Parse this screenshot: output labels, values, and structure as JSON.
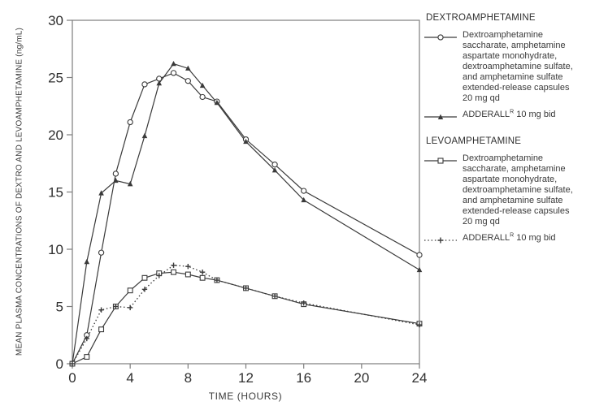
{
  "figure_title": "Mean plasma concentrations of dextro- and levoamphetamine",
  "colors": {
    "line": "#3a3a3a",
    "frame": "#7d7d7d",
    "text": "#2f2f2f",
    "background": "#ffffff"
  },
  "legend": {
    "groups": [
      {
        "header": "DEXTROAMPHETAMINE"
      },
      {
        "header": "LEVOAMPHETAMINE"
      }
    ],
    "capsule_text": "Dextroamphetamine\nsaccharate, amphetamine\naspartate monohydrate,\ndextroamphetamine sulfate,\nand amphetamine sulfate\nextended-release capsules\n20 mg qd",
    "adderall": {
      "name": "ADDERALL",
      "registered_mark": "R",
      "dose": " 10 mg bid"
    }
  },
  "chart_data": {
    "type": "line",
    "title": "",
    "xlabel": "TIME (HOURS)",
    "ylabel": "MEAN PLASMA CONCENTRATIONS OF DEXTRO AND LEVOAMPHETAMINE (ng/mL)",
    "xlim": [
      0,
      24
    ],
    "ylim": [
      0,
      30
    ],
    "xticks": [
      0,
      4,
      8,
      12,
      16,
      20,
      24
    ],
    "yticks": [
      0,
      5,
      10,
      15,
      20,
      25,
      30
    ],
    "grid": false,
    "legend_position": "right",
    "x": [
      0,
      1,
      2,
      3,
      4,
      5,
      6,
      7,
      8,
      9,
      10,
      12,
      14,
      16,
      24
    ],
    "series": [
      {
        "name": "Dextroamphetamine saccharate, amphetamine aspartate monohydrate, dextroamphetamine sulfate, and amphetamine sulfate extended-release capsules 20 mg qd",
        "group": "DEXTROAMPHETAMINE",
        "marker": "circle",
        "line_style": "solid",
        "values": [
          0,
          2.5,
          9.7,
          16.6,
          21.1,
          24.4,
          24.9,
          25.4,
          24.7,
          23.3,
          22.9,
          19.6,
          17.4,
          15.1,
          9.5
        ]
      },
      {
        "name": "ADDERALL 10 mg bid",
        "group": "DEXTROAMPHETAMINE",
        "marker": "triangle",
        "line_style": "solid",
        "values": [
          0,
          8.9,
          14.9,
          16.0,
          15.7,
          19.9,
          24.5,
          26.2,
          25.8,
          24.3,
          22.8,
          19.4,
          16.9,
          14.3,
          8.2
        ]
      },
      {
        "name": "Dextroamphetamine saccharate, amphetamine aspartate monohydrate, dextroamphetamine sulfate, and amphetamine sulfate extended-release capsules 20 mg qd",
        "group": "LEVOAMPHETAMINE",
        "marker": "square",
        "line_style": "solid",
        "values": [
          0,
          0.6,
          3.0,
          5.0,
          6.4,
          7.5,
          7.9,
          8.0,
          7.8,
          7.5,
          7.3,
          6.6,
          5.9,
          5.2,
          3.5
        ]
      },
      {
        "name": "ADDERALL 10 mg bid",
        "group": "LEVOAMPHETAMINE",
        "marker": "plus",
        "line_style": "dotted",
        "values": [
          0,
          2.2,
          4.7,
          5.0,
          4.9,
          6.5,
          7.7,
          8.6,
          8.5,
          8.0,
          7.3,
          6.6,
          5.9,
          5.3,
          3.4
        ]
      }
    ]
  }
}
